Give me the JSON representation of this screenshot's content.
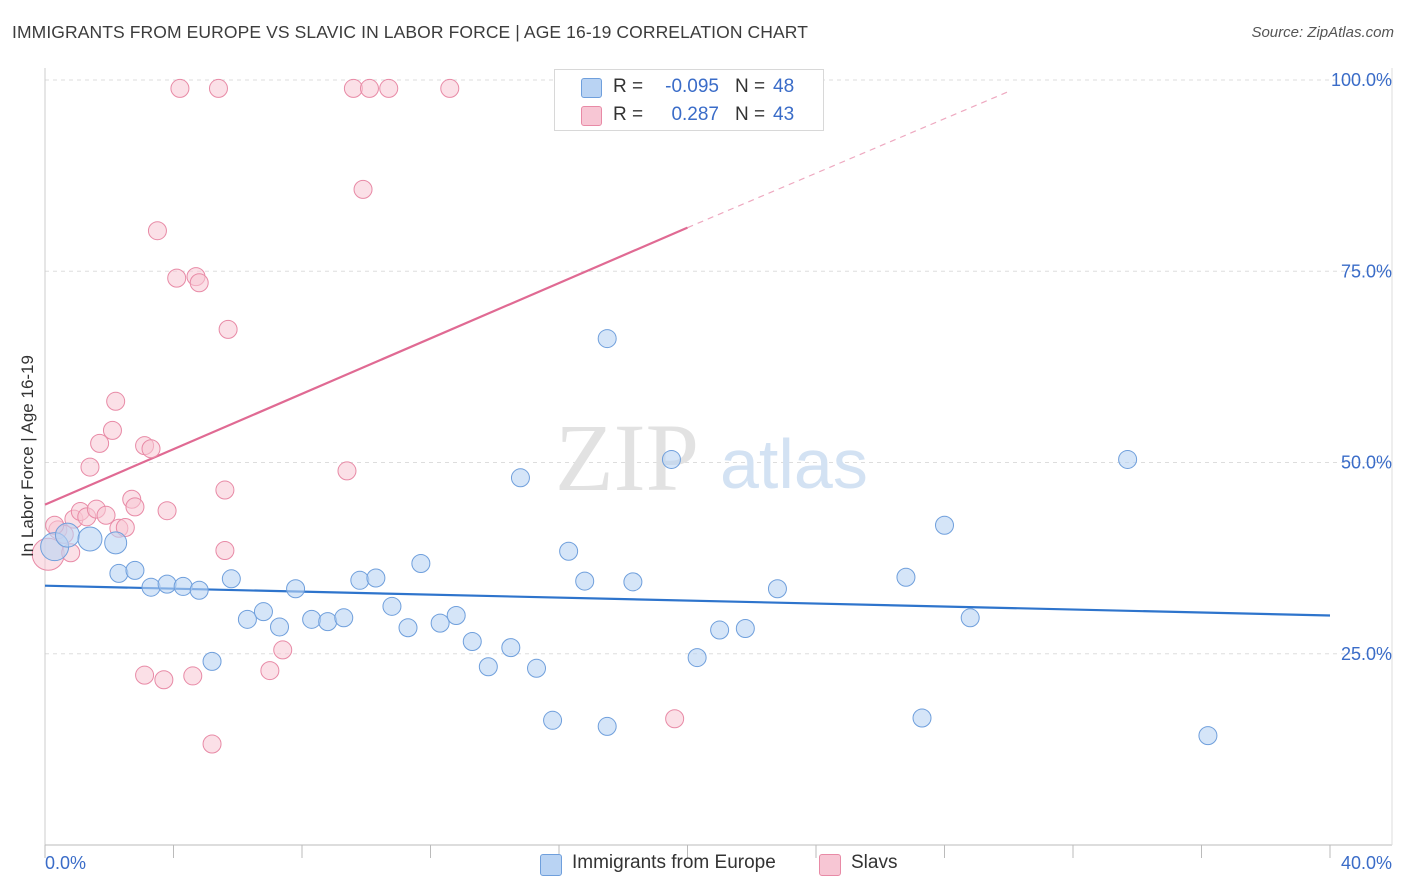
{
  "title": "IMMIGRANTS FROM EUROPE VS SLAVIC IN LABOR FORCE | AGE 16-19 CORRELATION CHART",
  "source": "Source: ZipAtlas.com",
  "watermark": {
    "zip": "ZIP",
    "atlas": "atlas"
  },
  "legend": {
    "r_label": "R =",
    "n_label": "N =",
    "series1": {
      "r": "-0.095",
      "n": "48"
    },
    "series2": {
      "r": "0.287",
      "n": "43"
    }
  },
  "bottom_legend": {
    "series1": "Immigrants from Europe",
    "series2": "Slavs"
  },
  "colors": {
    "blue_fill": "#b9d3f3",
    "blue_stroke": "#6f9fdc",
    "blue_line": "#2e74cc",
    "pink_fill": "#f7c6d4",
    "pink_stroke": "#e88aa6",
    "pink_line": "#e06a93",
    "axis_label": "#3a6cc8",
    "grid": "#dddddd"
  },
  "chart_data": {
    "type": "scatter",
    "title": "IMMIGRANTS FROM EUROPE VS SLAVIC IN LABOR FORCE | AGE 16-19 CORRELATION CHART",
    "xlabel": "",
    "ylabel": "In Labor Force | Age 16-19",
    "xlim": [
      0,
      40
    ],
    "ylim": [
      0,
      100
    ],
    "x_tick_labels": [
      "0.0%",
      "40.0%"
    ],
    "y_ticks": [
      25,
      50,
      75,
      100
    ],
    "y_tick_labels": [
      "25.0%",
      "50.0%",
      "75.0%",
      "100.0%"
    ],
    "series": [
      {
        "name": "Immigrants from Europe",
        "r": -0.095,
        "n": 48,
        "trend": {
          "x": [
            0,
            40
          ],
          "y": [
            33.9,
            30.0
          ],
          "dashed_from": null
        },
        "points": [
          {
            "x": 0.3,
            "y": 39.0,
            "s": 14
          },
          {
            "x": 0.7,
            "y": 40.5,
            "s": 12
          },
          {
            "x": 2.2,
            "y": 39.5,
            "s": 11
          },
          {
            "x": 1.4,
            "y": 40.0,
            "s": 12
          },
          {
            "x": 2.3,
            "y": 35.5,
            "s": 9
          },
          {
            "x": 2.8,
            "y": 35.9,
            "s": 9
          },
          {
            "x": 3.3,
            "y": 33.7,
            "s": 9
          },
          {
            "x": 3.8,
            "y": 34.1,
            "s": 9
          },
          {
            "x": 4.3,
            "y": 33.8,
            "s": 9
          },
          {
            "x": 4.8,
            "y": 33.3,
            "s": 9
          },
          {
            "x": 5.2,
            "y": 24.0,
            "s": 9
          },
          {
            "x": 5.8,
            "y": 34.8,
            "s": 9
          },
          {
            "x": 6.3,
            "y": 29.5,
            "s": 9
          },
          {
            "x": 6.8,
            "y": 30.5,
            "s": 9
          },
          {
            "x": 7.3,
            "y": 28.5,
            "s": 9
          },
          {
            "x": 7.8,
            "y": 33.5,
            "s": 9
          },
          {
            "x": 8.3,
            "y": 29.5,
            "s": 9
          },
          {
            "x": 8.8,
            "y": 29.2,
            "s": 9
          },
          {
            "x": 9.3,
            "y": 29.7,
            "s": 9
          },
          {
            "x": 9.8,
            "y": 34.6,
            "s": 9
          },
          {
            "x": 10.3,
            "y": 34.9,
            "s": 9
          },
          {
            "x": 10.8,
            "y": 31.2,
            "s": 9
          },
          {
            "x": 11.3,
            "y": 28.4,
            "s": 9
          },
          {
            "x": 11.7,
            "y": 36.8,
            "s": 9
          },
          {
            "x": 12.3,
            "y": 29.0,
            "s": 9
          },
          {
            "x": 12.8,
            "y": 30.0,
            "s": 9
          },
          {
            "x": 13.3,
            "y": 26.6,
            "s": 9
          },
          {
            "x": 13.8,
            "y": 23.3,
            "s": 9
          },
          {
            "x": 14.5,
            "y": 25.8,
            "s": 9
          },
          {
            "x": 14.8,
            "y": 48.0,
            "s": 9
          },
          {
            "x": 15.3,
            "y": 23.1,
            "s": 9
          },
          {
            "x": 15.8,
            "y": 16.3,
            "s": 9
          },
          {
            "x": 16.3,
            "y": 38.4,
            "s": 9
          },
          {
            "x": 16.8,
            "y": 34.5,
            "s": 9
          },
          {
            "x": 17.5,
            "y": 15.5,
            "s": 9
          },
          {
            "x": 17.5,
            "y": 66.2,
            "s": 9
          },
          {
            "x": 18.3,
            "y": 34.4,
            "s": 9
          },
          {
            "x": 19.5,
            "y": 50.4,
            "s": 9
          },
          {
            "x": 20.3,
            "y": 24.5,
            "s": 9
          },
          {
            "x": 21.0,
            "y": 28.1,
            "s": 9
          },
          {
            "x": 21.8,
            "y": 28.3,
            "s": 9
          },
          {
            "x": 22.8,
            "y": 33.5,
            "s": 9
          },
          {
            "x": 26.8,
            "y": 35.0,
            "s": 9
          },
          {
            "x": 27.3,
            "y": 16.6,
            "s": 9
          },
          {
            "x": 28.0,
            "y": 41.8,
            "s": 9
          },
          {
            "x": 28.8,
            "y": 29.7,
            "s": 9
          },
          {
            "x": 33.7,
            "y": 50.4,
            "s": 9
          },
          {
            "x": 36.2,
            "y": 14.3,
            "s": 9
          }
        ]
      },
      {
        "name": "Slavs",
        "r": 0.287,
        "n": 43,
        "trend": {
          "x": [
            0,
            20.0,
            30.0
          ],
          "y": [
            44.5,
            80.7,
            98.5
          ],
          "dashed_from": 20.0
        },
        "points": [
          {
            "x": 0.1,
            "y": 38.0,
            "s": 16
          },
          {
            "x": 0.4,
            "y": 41.2,
            "s": 9
          },
          {
            "x": 0.6,
            "y": 40.6,
            "s": 9
          },
          {
            "x": 0.8,
            "y": 38.2,
            "s": 9
          },
          {
            "x": 0.9,
            "y": 42.6,
            "s": 9
          },
          {
            "x": 1.1,
            "y": 43.6,
            "s": 9
          },
          {
            "x": 1.3,
            "y": 42.9,
            "s": 9
          },
          {
            "x": 1.4,
            "y": 49.4,
            "s": 9
          },
          {
            "x": 1.6,
            "y": 43.9,
            "s": 9
          },
          {
            "x": 1.7,
            "y": 52.5,
            "s": 9
          },
          {
            "x": 1.9,
            "y": 43.1,
            "s": 9
          },
          {
            "x": 2.1,
            "y": 54.2,
            "s": 9
          },
          {
            "x": 2.2,
            "y": 58.0,
            "s": 9
          },
          {
            "x": 2.3,
            "y": 41.4,
            "s": 9
          },
          {
            "x": 2.5,
            "y": 41.5,
            "s": 9
          },
          {
            "x": 2.7,
            "y": 45.2,
            "s": 9
          },
          {
            "x": 2.8,
            "y": 44.2,
            "s": 9
          },
          {
            "x": 3.1,
            "y": 22.2,
            "s": 9
          },
          {
            "x": 3.1,
            "y": 52.2,
            "s": 9
          },
          {
            "x": 3.3,
            "y": 51.8,
            "s": 9
          },
          {
            "x": 3.5,
            "y": 80.3,
            "s": 9
          },
          {
            "x": 3.7,
            "y": 21.6,
            "s": 9
          },
          {
            "x": 3.8,
            "y": 43.7,
            "s": 9
          },
          {
            "x": 4.1,
            "y": 74.1,
            "s": 9
          },
          {
            "x": 4.2,
            "y": 98.9,
            "s": 9
          },
          {
            "x": 4.6,
            "y": 22.1,
            "s": 9
          },
          {
            "x": 4.7,
            "y": 74.3,
            "s": 9
          },
          {
            "x": 4.8,
            "y": 73.5,
            "s": 9
          },
          {
            "x": 5.2,
            "y": 13.2,
            "s": 9
          },
          {
            "x": 5.4,
            "y": 98.9,
            "s": 9
          },
          {
            "x": 5.6,
            "y": 46.4,
            "s": 9
          },
          {
            "x": 5.6,
            "y": 38.5,
            "s": 9
          },
          {
            "x": 5.7,
            "y": 67.4,
            "s": 9
          },
          {
            "x": 7.0,
            "y": 22.8,
            "s": 9
          },
          {
            "x": 7.4,
            "y": 25.5,
            "s": 9
          },
          {
            "x": 9.4,
            "y": 48.9,
            "s": 9
          },
          {
            "x": 9.6,
            "y": 98.9,
            "s": 9
          },
          {
            "x": 9.9,
            "y": 85.7,
            "s": 9
          },
          {
            "x": 10.1,
            "y": 98.9,
            "s": 9
          },
          {
            "x": 10.7,
            "y": 98.9,
            "s": 9
          },
          {
            "x": 12.6,
            "y": 98.9,
            "s": 9
          },
          {
            "x": 19.6,
            "y": 16.5,
            "s": 9
          },
          {
            "x": 0.3,
            "y": 41.8,
            "s": 9
          }
        ]
      }
    ]
  }
}
